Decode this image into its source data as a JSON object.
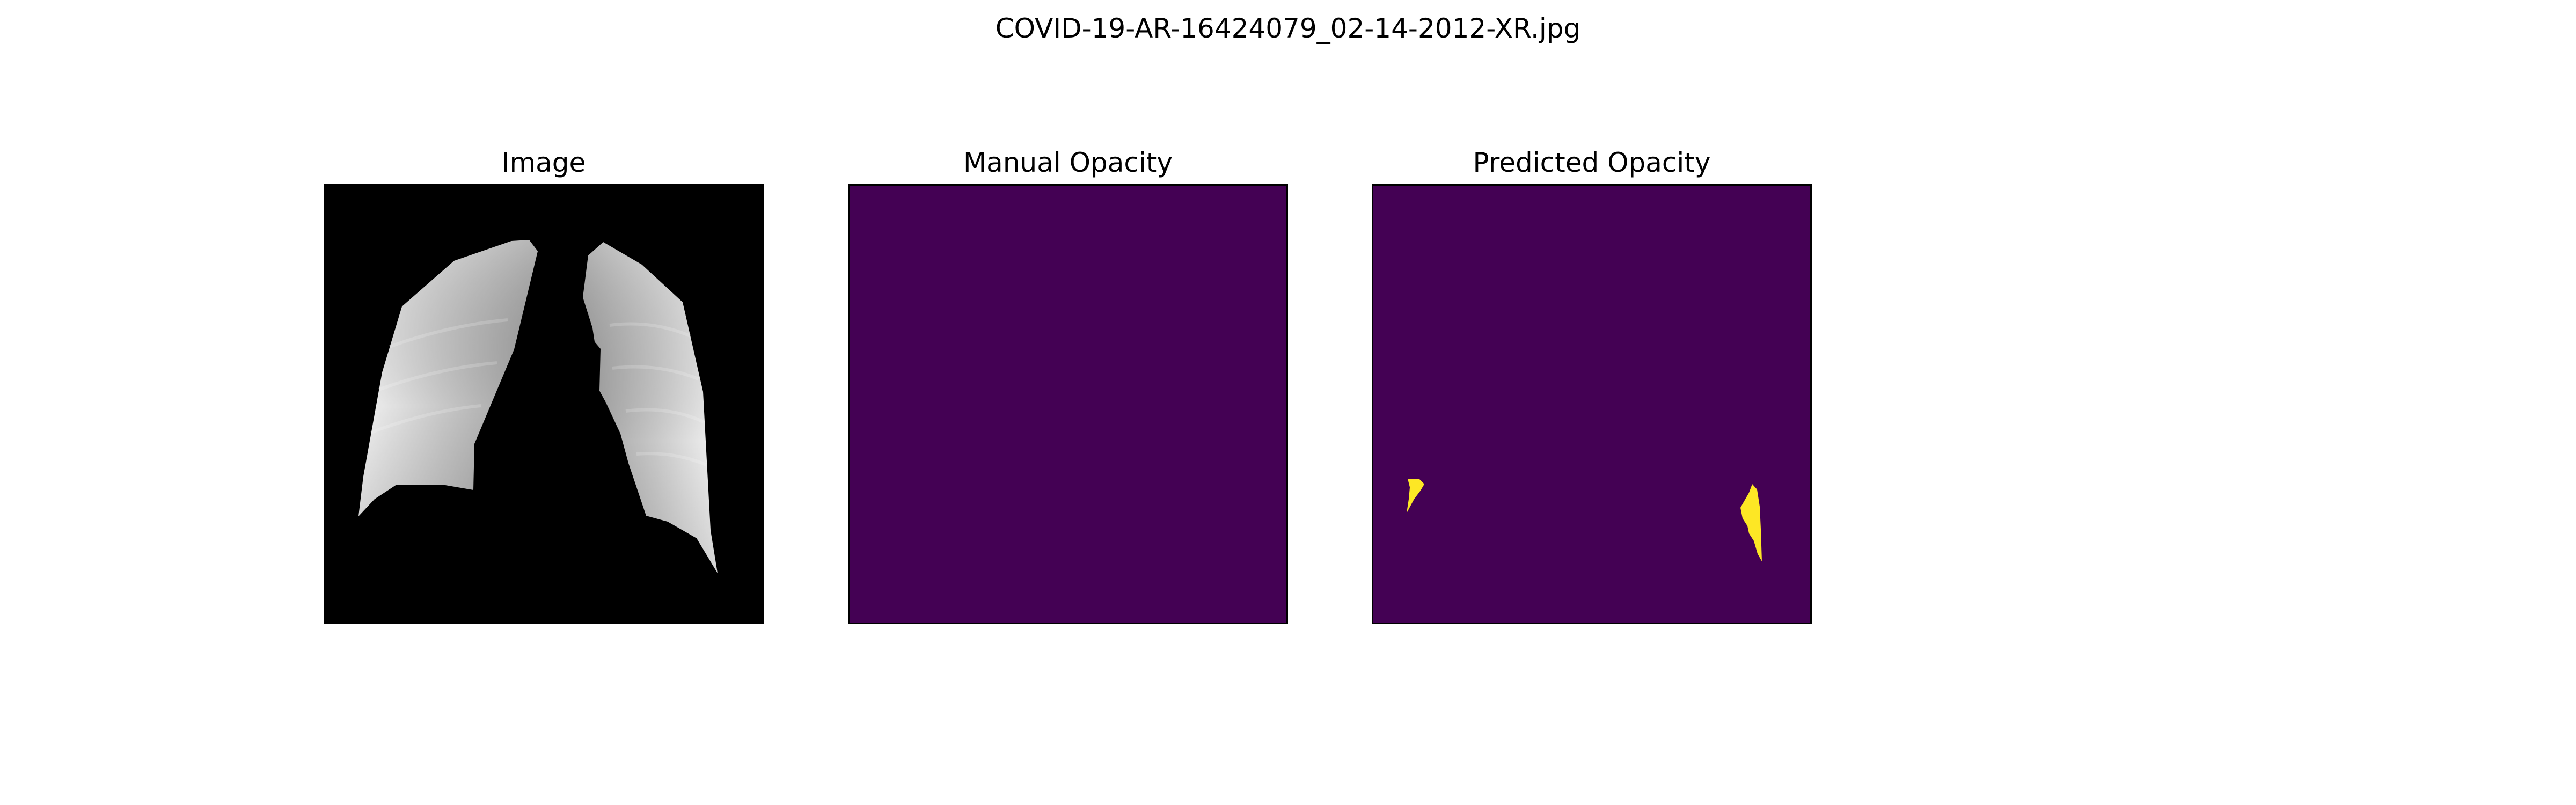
{
  "figure": {
    "title": "COVID-19-AR-16424079_02-14-2012-XR.jpg"
  },
  "panels": [
    {
      "title": "Image"
    },
    {
      "title": "Manual Opacity"
    },
    {
      "title": "Predicted Opacity"
    }
  ],
  "colors": {
    "image_background": "#000000",
    "mask_background": "#440154",
    "mask_foreground": "#fde725",
    "lung_light": "#e8e8e8",
    "lung_mid": "#b5b5b5"
  }
}
